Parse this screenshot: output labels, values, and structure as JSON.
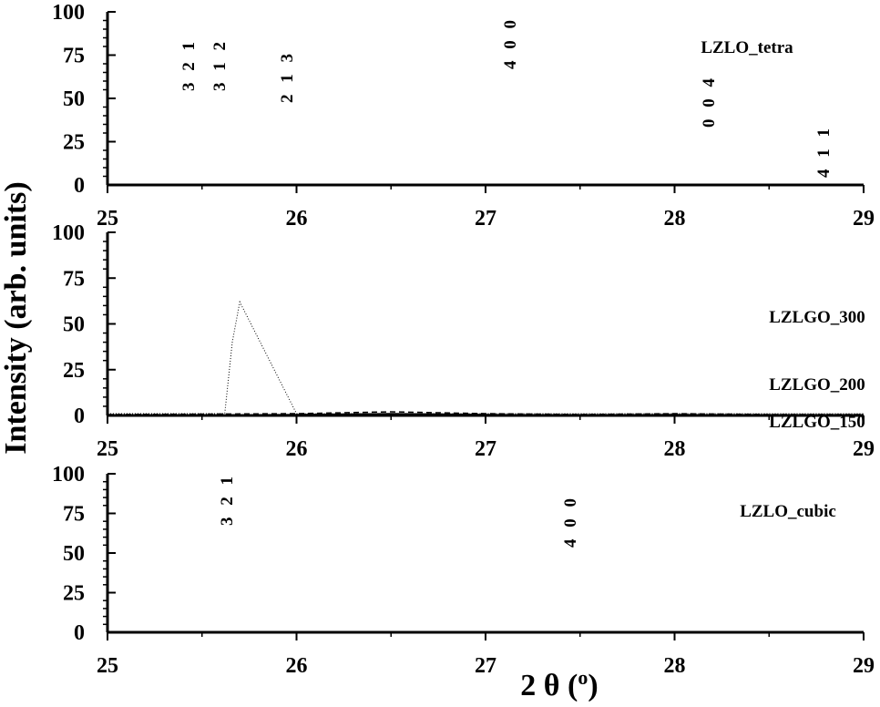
{
  "chart_data": [
    {
      "type": "line",
      "panel": "top",
      "xlim": [
        25,
        29
      ],
      "ylim": [
        0,
        100
      ],
      "x_ticks": [
        25,
        26,
        27,
        28,
        29
      ],
      "y_ticks": [
        0,
        25,
        50,
        75,
        100
      ],
      "x_tick_labels": [
        "25",
        "26",
        "27",
        "28",
        "29"
      ],
      "y_tick_labels": [
        "0",
        "25",
        "50",
        "75",
        "100"
      ],
      "series": [
        {
          "name": "LZLO_tetra",
          "x": [
            25.0,
            25.5,
            25.65,
            26.0,
            27.1,
            28.2,
            28.8,
            29.0
          ],
          "y": [
            0,
            0,
            0,
            0,
            0,
            0,
            0,
            0
          ]
        }
      ],
      "annotations": [
        {
          "text": "3 2 1",
          "x": 25.48,
          "y": 70
        },
        {
          "text": "3 1 2",
          "x": 25.65,
          "y": 70
        },
        {
          "text": "2 1 3",
          "x": 25.98,
          "y": 63
        },
        {
          "text": "4 0 0",
          "x": 27.15,
          "y": 82
        },
        {
          "text": "0 0 4",
          "x": 28.2,
          "y": 48
        },
        {
          "text": "4 1 1",
          "x": 28.82,
          "y": 19
        }
      ],
      "legend_position": "top-right",
      "grid": false
    },
    {
      "type": "line",
      "panel": "middle",
      "xlim": [
        25,
        29
      ],
      "ylim": [
        0,
        100
      ],
      "x_ticks": [
        25,
        26,
        27,
        28,
        29
      ],
      "y_ticks": [
        0,
        25,
        50,
        75,
        100
      ],
      "x_tick_labels": [
        "25",
        "26",
        "27",
        "28",
        "29"
      ],
      "y_tick_labels": [
        "0",
        "25",
        "50",
        "75",
        "100"
      ],
      "series": [
        {
          "name": "LZLGO_300",
          "x": [
            25.0,
            25.5,
            25.62,
            25.66,
            25.7,
            26.0,
            26.5,
            27.0,
            27.5,
            28.0,
            28.5,
            29.0
          ],
          "y": [
            1,
            1,
            1,
            40,
            62,
            1,
            1,
            1,
            1,
            1,
            1,
            1
          ]
        },
        {
          "name": "LZLGO_200",
          "x": [
            25.0,
            26.0,
            26.5,
            27.0,
            27.5,
            28.0,
            28.5,
            29.0
          ],
          "y": [
            0.5,
            1,
            2,
            1,
            0.5,
            1,
            0.5,
            0.5
          ]
        },
        {
          "name": "LZLGO_150",
          "x": [
            25.0,
            26.0,
            26.5,
            27.0,
            27.5,
            28.0,
            28.5,
            29.0
          ],
          "y": [
            0,
            0.5,
            1,
            0.5,
            0,
            0.5,
            0,
            0
          ]
        }
      ],
      "legend_position": "right",
      "grid": false
    },
    {
      "type": "line",
      "panel": "bottom",
      "xlim": [
        25,
        29
      ],
      "ylim": [
        0,
        100
      ],
      "x_ticks": [
        25,
        26,
        27,
        28,
        29
      ],
      "y_ticks": [
        0,
        25,
        50,
        75,
        100
      ],
      "x_tick_labels": [
        "25",
        "26",
        "27",
        "28",
        "29"
      ],
      "y_tick_labels": [
        "0",
        "25",
        "50",
        "75",
        "100"
      ],
      "xlabel": "2 θ (o)",
      "series": [
        {
          "name": "LZLO_cubic",
          "x": [
            25.0,
            25.65,
            26.0,
            27.0,
            27.5,
            28.0,
            29.0
          ],
          "y": [
            0,
            0,
            0,
            0,
            0,
            0,
            0
          ]
        }
      ],
      "annotations": [
        {
          "text": "3 2 1",
          "x": 25.65,
          "y": 82
        },
        {
          "text": "4 0 0",
          "x": 27.47,
          "y": 73
        }
      ],
      "legend_position": "right",
      "grid": false
    }
  ],
  "figure": {
    "ylabel": "Intensity (arb. units)",
    "xlabel_prefix": "2 θ (",
    "xlabel_superscript": "o",
    "xlabel_suffix": ")"
  },
  "colors": {
    "line": "#000000",
    "background": "#ffffff"
  }
}
